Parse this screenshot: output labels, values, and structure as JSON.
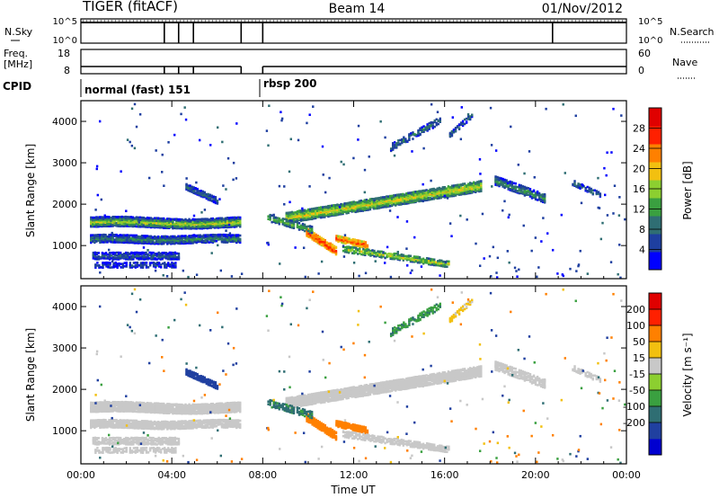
{
  "header": {
    "radar": "TIGER (fitACF)",
    "beam": "Beam 14",
    "date": "01/Nov/2012"
  },
  "strip_panels": {
    "nsky": {
      "label": "N.Sky",
      "ticks_left": [
        "10^5",
        "10^0"
      ],
      "right_label": "N.Search",
      "ticks_right": [
        "10^5",
        "10^0"
      ]
    },
    "freq": {
      "label_line1": "Freq.",
      "label_line2": "[MHz]",
      "ticks_left": [
        "18",
        "8"
      ],
      "right_label": "Nave",
      "ticks_right": [
        "60",
        "0"
      ]
    },
    "cpid": {
      "label": "CPID",
      "modes": [
        {
          "name": "normal (fast) 151",
          "start_hour": 0
        },
        {
          "name": "rbsp 200",
          "start_hour": 8
        }
      ]
    },
    "dropout_hours": [
      3.67,
      4.3,
      4.95,
      7.05,
      8.0,
      20.75
    ]
  },
  "chart_data": [
    {
      "type": "heatmap",
      "title": "",
      "xlabel": "",
      "ylabel": "Slant Range [km]",
      "x_range_hours": [
        0,
        24
      ],
      "x_ticks": [
        "00:00",
        "04:00",
        "08:00",
        "12:00",
        "16:00",
        "20:00",
        "00:00"
      ],
      "ylim": [
        200,
        4500
      ],
      "y_ticks": [
        "1000",
        "2000",
        "3000",
        "4000"
      ],
      "colorbar": {
        "label": "Power [dB]",
        "ticks": [
          "4",
          "8",
          "12",
          "16",
          "20",
          "24",
          "28"
        ],
        "range": [
          0,
          32
        ],
        "colors": [
          "#0000ff",
          "#1e3fa0",
          "#2f6e73",
          "#3aa040",
          "#8ccf30",
          "#f2c010",
          "#ff8000",
          "#ff2000",
          "#e00000"
        ]
      },
      "features": [
        {
          "name": "early band A",
          "t": [
            0.4,
            7.0
          ],
          "range_km": [
            1500,
            1650
          ],
          "level": 18
        },
        {
          "name": "early band B",
          "t": [
            0.4,
            7.0
          ],
          "range_km": [
            1100,
            1250
          ],
          "level": 10
        },
        {
          "name": "early band C",
          "t": [
            0.4,
            4.3
          ],
          "range_km": [
            700,
            850
          ],
          "level": 8
        },
        {
          "name": "rising arc",
          "t": [
            9.0,
            17.6
          ],
          "range_km": [
            1700,
            2400
          ],
          "level": 20
        },
        {
          "name": "near-range echo",
          "t": [
            9.9,
            12.6
          ],
          "range_km": [
            800,
            1350
          ],
          "level": 26
        },
        {
          "name": "late band",
          "t": [
            18.2,
            20.4
          ],
          "range_km": [
            2000,
            2700
          ],
          "level": 12
        }
      ]
    },
    {
      "type": "heatmap",
      "title": "",
      "xlabel": "Time UT",
      "ylabel": "Slant Range [km]",
      "x_range_hours": [
        0,
        24
      ],
      "x_ticks": [
        "00:00",
        "04:00",
        "08:00",
        "12:00",
        "16:00",
        "20:00",
        "00:00"
      ],
      "ylim": [
        200,
        4500
      ],
      "y_ticks": [
        "1000",
        "2000",
        "3000",
        "4000"
      ],
      "colorbar": {
        "label": "Velocity [m s⁻¹]",
        "ticks": [
          "200",
          "100",
          "50",
          "15",
          "-15",
          "-50",
          "-100",
          "-200"
        ],
        "colors": [
          "#0000d0",
          "#2040a0",
          "#2f6e73",
          "#3aa040",
          "#8ccf30",
          "#c8c8c8",
          "#f2c010",
          "#ff8000",
          "#ff2000",
          "#e00000"
        ]
      },
      "features": [
        {
          "name": "ground scatter band A",
          "t": [
            0.4,
            7.0
          ],
          "range_km": [
            1550,
            1700
          ],
          "velocity": 0
        },
        {
          "name": "ground scatter band B",
          "t": [
            0.4,
            7.0
          ],
          "range_km": [
            1150,
            1300
          ],
          "velocity": 0
        },
        {
          "name": "arc",
          "t": [
            9.0,
            17.6
          ],
          "range_km": [
            1800,
            2500
          ],
          "velocity": 0
        },
        {
          "name": "receding echo",
          "t": [
            9.9,
            11.8
          ],
          "range_km": [
            700,
            1400
          ],
          "velocity": -150
        },
        {
          "name": "approaching echo",
          "t": [
            4.6,
            5.4
          ],
          "range_km": [
            1950,
            2300
          ],
          "velocity": 150
        }
      ]
    }
  ]
}
